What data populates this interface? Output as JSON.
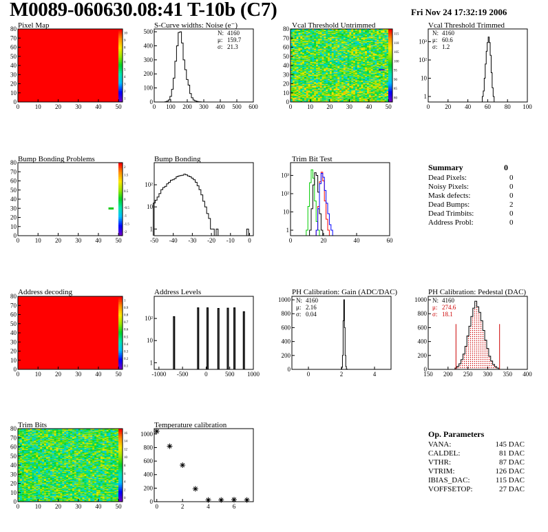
{
  "header": {
    "title": "M0089-060630.08:41 T-10b (C7)",
    "date": "Fri Nov 24 17:32:19 2006"
  },
  "summary": {
    "title": "Summary",
    "value": "0",
    "rows": [
      {
        "label": "Dead Pixels:",
        "value": "0"
      },
      {
        "label": "Noisy Pixels:",
        "value": "0"
      },
      {
        "label": "Mask defects:",
        "value": "0"
      },
      {
        "label": "Dead Bumps:",
        "value": "2"
      },
      {
        "label": "Dead Trimbits:",
        "value": "0"
      },
      {
        "label": "Address Probl:",
        "value": "0"
      }
    ]
  },
  "op_params": {
    "title": "Op. Parameters",
    "rows": [
      {
        "label": "VANA:",
        "value": "145 DAC"
      },
      {
        "label": "CALDEL:",
        "value": "81 DAC"
      },
      {
        "label": "VTHR:",
        "value": "87 DAC"
      },
      {
        "label": "VTRIM:",
        "value": "126 DAC"
      },
      {
        "label": "IBIAS_DAC:",
        "value": "115 DAC"
      },
      {
        "label": "VOFFSETOP:",
        "value": "27 DAC"
      }
    ]
  },
  "chart_data": [
    {
      "id": "pixelmap",
      "type": "heatmap",
      "title": "Pixel Map",
      "xlim": [
        0,
        52
      ],
      "ylim": [
        0,
        80
      ],
      "xticks": [
        "0",
        "10",
        "20",
        "30",
        "40",
        "50"
      ],
      "yticks": [
        "0",
        "10",
        "20",
        "30",
        "40",
        "50",
        "60",
        "70",
        "80"
      ],
      "uniform_color": "#ff0000",
      "zticks": [
        "10",
        "9",
        "8",
        "7",
        "6",
        "5",
        "4",
        "3",
        "2",
        "1"
      ]
    },
    {
      "id": "scurve",
      "type": "histogram",
      "title": "S-Curve widths: Noise (e⁻)",
      "xlim": [
        0,
        600
      ],
      "ylim": [
        0,
        520
      ],
      "xticks": [
        "0",
        "100",
        "200",
        "300",
        "400",
        "500",
        "600"
      ],
      "yticks": [
        "0",
        "100",
        "200",
        "300",
        "400",
        "500"
      ],
      "x": [
        70,
        80,
        90,
        100,
        110,
        120,
        130,
        140,
        150,
        160,
        170,
        180,
        190,
        200,
        210,
        220,
        230,
        240,
        250,
        260,
        270,
        280
      ],
      "values": [
        2,
        6,
        15,
        40,
        90,
        170,
        290,
        400,
        495,
        500,
        420,
        300,
        230,
        160,
        120,
        60,
        30,
        14,
        8,
        4,
        2,
        1
      ],
      "binwidth": 10,
      "stats": [
        {
          "label": "N:",
          "value": "4160"
        },
        {
          "label": "μ:",
          "value": "159.7"
        },
        {
          "label": "σ:",
          "value": "21.3"
        }
      ]
    },
    {
      "id": "vcaluntrim",
      "type": "heatmap",
      "title": "Vcal Threshold Untrimmed",
      "xlim": [
        0,
        52
      ],
      "ylim": [
        0,
        80
      ],
      "xticks": [
        "0",
        "10",
        "20",
        "30",
        "40",
        "50"
      ],
      "yticks": [
        "0",
        "10",
        "20",
        "30",
        "40",
        "50",
        "60",
        "70",
        "80"
      ],
      "zticks": [
        "115",
        "110",
        "105",
        "100",
        "95",
        "90",
        "85",
        "80"
      ],
      "outlier": {
        "col": 45,
        "row": 35
      }
    },
    {
      "id": "vcaltrim",
      "type": "histogram",
      "title": "Vcal Threshold Trimmed",
      "log_scale": true,
      "xlim": [
        0,
        100
      ],
      "ylim": [
        0.5,
        5000
      ],
      "xticks": [
        "0",
        "20",
        "40",
        "60",
        "80",
        "100"
      ],
      "yticks": [
        "1",
        "10",
        "10²",
        "10³"
      ],
      "x": [
        55,
        56,
        57,
        58,
        59,
        60,
        61,
        62,
        63,
        64,
        65,
        66
      ],
      "values": [
        1,
        2,
        10,
        60,
        300,
        900,
        1800,
        900,
        180,
        20,
        3,
        1
      ],
      "binwidth": 1,
      "stats": [
        {
          "label": "N:",
          "value": "4160"
        },
        {
          "label": "μ:",
          "value": "60.6"
        },
        {
          "label": "σ:",
          "value": "1.2"
        }
      ]
    },
    {
      "id": "bumpmap",
      "type": "heatmap",
      "title": "Bump Bonding Problems",
      "xlim": [
        0,
        52
      ],
      "ylim": [
        0,
        80
      ],
      "xticks": [
        "0",
        "10",
        "20",
        "30",
        "40",
        "50"
      ],
      "yticks": [
        "0",
        "10",
        "20",
        "30",
        "40",
        "50",
        "60",
        "70",
        "80"
      ],
      "zticks": [
        "2",
        "1.5",
        "1",
        "0.5",
        "0",
        "-0.5",
        "-1",
        "-1.5",
        "-2"
      ],
      "points": [
        {
          "col": 45,
          "row": 30
        },
        {
          "col": 46,
          "row": 30
        }
      ]
    },
    {
      "id": "bumpbond",
      "type": "histogram",
      "title": "Bump Bonding",
      "log_scale": true,
      "xlim": [
        -50,
        2
      ],
      "ylim": [
        0.5,
        1000
      ],
      "xticks": [
        "-50",
        "-40",
        "-30",
        "-20",
        "-10",
        "0"
      ],
      "yticks": [
        "1",
        "10",
        "10²"
      ],
      "x": [
        -50,
        -49,
        -48,
        -47,
        -46,
        -45,
        -44,
        -43,
        -42,
        -41,
        -40,
        -39,
        -38,
        -37,
        -36,
        -35,
        -34,
        -33,
        -32,
        -31,
        -30,
        -29,
        -28,
        -27,
        -26,
        -25,
        -24,
        -23,
        -22,
        -21,
        -20,
        -19,
        -18,
        -17,
        -16
      ],
      "values": [
        15,
        20,
        28,
        40,
        60,
        75,
        85,
        110,
        130,
        160,
        170,
        190,
        230,
        250,
        260,
        270,
        300,
        280,
        250,
        230,
        200,
        170,
        130,
        90,
        60,
        35,
        18,
        10,
        5,
        3,
        1,
        1,
        0,
        0,
        0
      ],
      "binwidth": 1,
      "extra": [
        {
          "x": -17,
          "value": 1
        },
        {
          "x": -1,
          "value": 1
        }
      ]
    },
    {
      "id": "trimbit",
      "type": "histogram",
      "title": "Trim Bit Test",
      "log_scale": true,
      "xlim": [
        0,
        60
      ],
      "ylim": [
        0.5,
        5000
      ],
      "xticks": [
        "0",
        "20",
        "40",
        "60"
      ],
      "yticks": [
        "1",
        "10",
        "10²",
        "10³"
      ],
      "series": [
        {
          "color": "#00cc00",
          "x": [
            10,
            11,
            12,
            13,
            14,
            15,
            16,
            17
          ],
          "values": [
            1,
            20,
            400,
            2000,
            700,
            40,
            3,
            1
          ]
        },
        {
          "color": "#000000",
          "x": [
            12,
            13,
            14,
            15,
            16,
            17,
            18,
            19
          ],
          "values": [
            1,
            15,
            300,
            1400,
            1000,
            120,
            8,
            1
          ]
        },
        {
          "color": "#ff0000",
          "x": [
            16,
            17,
            18,
            19,
            20,
            21,
            22,
            23
          ],
          "values": [
            1,
            20,
            450,
            1500,
            500,
            40,
            4,
            1
          ]
        },
        {
          "color": "#0000ff",
          "x": [
            16,
            17,
            18,
            19,
            20,
            21,
            22,
            23,
            24,
            25
          ],
          "values": [
            1,
            15,
            350,
            1300,
            800,
            150,
            30,
            8,
            2,
            1
          ]
        }
      ]
    },
    {
      "id": "addrmap",
      "type": "heatmap",
      "title": "Address decoding",
      "xlim": [
        0,
        52
      ],
      "ylim": [
        0,
        80
      ],
      "xticks": [
        "0",
        "10",
        "20",
        "30",
        "40",
        "50"
      ],
      "yticks": [
        "0",
        "10",
        "20",
        "30",
        "40",
        "50",
        "60",
        "70",
        "80"
      ],
      "uniform_color": "#ff0000",
      "zticks": [
        "1",
        "0.9",
        "0.8",
        "0.7",
        "0.6",
        "0.5",
        "0.4",
        "0.3",
        "0.2",
        "0.1"
      ]
    },
    {
      "id": "addrlevels",
      "type": "histogram",
      "title": "Address Levels",
      "log_scale": true,
      "xlim": [
        -1100,
        1000
      ],
      "ylim": [
        0.5,
        1000
      ],
      "xticks": [
        "-1000",
        "-500",
        "0",
        "500",
        "1000"
      ],
      "yticks": [
        "1",
        "10",
        "10²"
      ],
      "peaks": [
        {
          "x": -680,
          "value": 120
        },
        {
          "x": -170,
          "value": 300
        },
        {
          "x": 30,
          "value": 300
        },
        {
          "x": 260,
          "value": 280
        },
        {
          "x": 460,
          "value": 290
        },
        {
          "x": 600,
          "value": 300
        },
        {
          "x": 800,
          "value": 200
        }
      ]
    },
    {
      "id": "phgain",
      "type": "histogram",
      "title": "PH Calibration: Gain (ADC/DAC)",
      "xlim": [
        -1,
        5
      ],
      "ylim": [
        0,
        1050
      ],
      "xticks": [
        "0",
        "2",
        "4"
      ],
      "yticks": [
        "0",
        "200",
        "400",
        "600",
        "800",
        "1000"
      ],
      "x": [
        2.0,
        2.04,
        2.08,
        2.12,
        2.16,
        2.2,
        2.24,
        2.28,
        2.32
      ],
      "values": [
        5,
        30,
        200,
        700,
        1000,
        600,
        200,
        40,
        5
      ],
      "binwidth": 0.04,
      "stats": [
        {
          "label": "N:",
          "value": "4160"
        },
        {
          "label": "μ:",
          "value": "2.16"
        },
        {
          "label": "σ:",
          "value": "0.04"
        }
      ]
    },
    {
      "id": "phped",
      "type": "histogram",
      "title": "PH Calibration: Pedestal (DAC)",
      "xlim": [
        150,
        400
      ],
      "ylim": [
        0,
        1050
      ],
      "xticks": [
        "150",
        "200",
        "250",
        "300",
        "350",
        "400"
      ],
      "yticks": [
        "0",
        "200",
        "400",
        "600",
        "800",
        "1000"
      ],
      "x": [
        220,
        225,
        230,
        235,
        240,
        245,
        250,
        255,
        260,
        265,
        270,
        275,
        280,
        285,
        290,
        295,
        300,
        305,
        310,
        315,
        320,
        325
      ],
      "values": [
        20,
        45,
        80,
        140,
        220,
        330,
        480,
        620,
        760,
        880,
        980,
        900,
        820,
        700,
        560,
        420,
        300,
        190,
        120,
        70,
        40,
        20
      ],
      "binwidth": 5,
      "cut_lines": [
        220,
        330
      ],
      "stats": [
        {
          "label": "N:",
          "value": "4160"
        },
        {
          "label": "μ:",
          "value": "274.6"
        },
        {
          "label": "σ:",
          "value": "18.1"
        }
      ]
    },
    {
      "id": "trimbits",
      "type": "heatmap",
      "title": "Trim Bits",
      "xlim": [
        0,
        52
      ],
      "ylim": [
        0,
        80
      ],
      "xticks": [
        "0",
        "10",
        "20",
        "30",
        "40",
        "50"
      ],
      "yticks": [
        "0",
        "10",
        "20",
        "30",
        "40",
        "50",
        "60",
        "70",
        "80"
      ],
      "zticks": [
        "16",
        "14",
        "12",
        "10",
        "8",
        "6",
        "4",
        "2",
        "0"
      ]
    },
    {
      "id": "tempcal",
      "type": "scatter",
      "title": "Temperature calibration",
      "xlim": [
        -0.2,
        7.5
      ],
      "ylim": [
        0,
        1080
      ],
      "xticks": [
        "0",
        "2",
        "4",
        "6"
      ],
      "yticks": [
        "0",
        "200",
        "400",
        "600",
        "800",
        "1000"
      ],
      "x": [
        0,
        1,
        2,
        3,
        4,
        5,
        6,
        7
      ],
      "values": [
        1040,
        820,
        540,
        190,
        25,
        25,
        30,
        25
      ]
    }
  ]
}
